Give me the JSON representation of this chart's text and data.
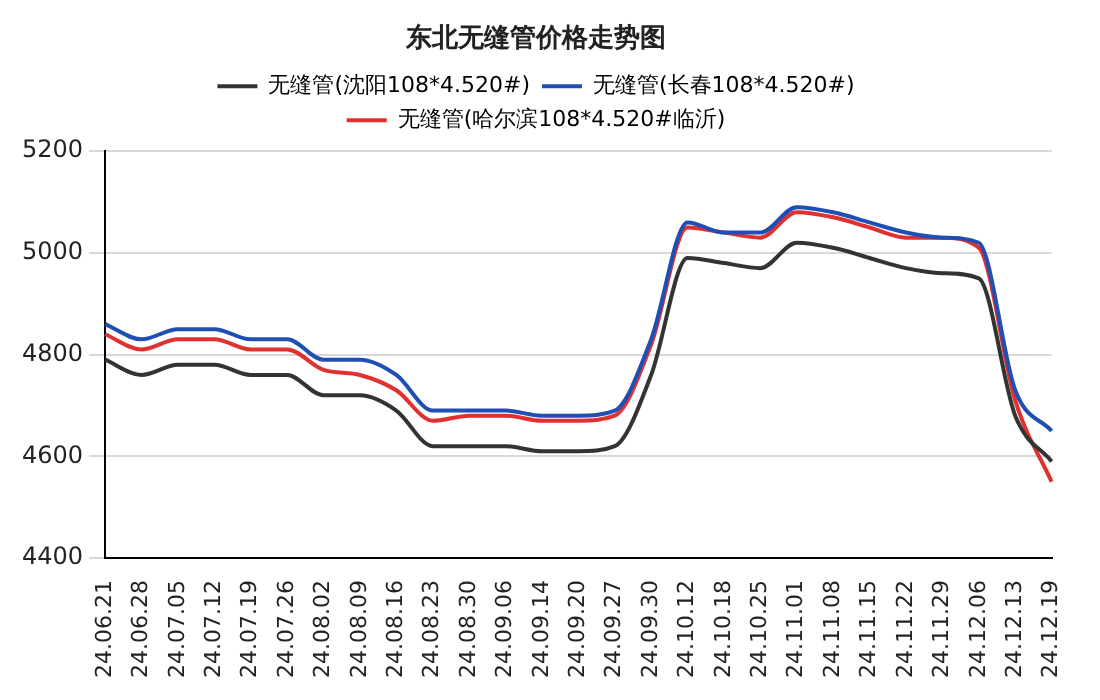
{
  "chart_data": {
    "type": "line",
    "title": "东北无缝管价格走势图",
    "categories": [
      "24.06.21",
      "24.06.28",
      "24.07.05",
      "24.07.12",
      "24.07.19",
      "24.07.26",
      "24.08.02",
      "24.08.09",
      "24.08.16",
      "24.08.23",
      "24.08.30",
      "24.09.06",
      "24.09.14",
      "24.09.20",
      "24.09.27",
      "24.09.30",
      "24.10.12",
      "24.10.18",
      "24.10.25",
      "24.11.01",
      "24.11.08",
      "24.11.15",
      "24.11.22",
      "24.11.29",
      "24.12.06",
      "24.12.13",
      "24.12.19"
    ],
    "series": [
      {
        "name": "无缝管(沈阳108*4.520#)",
        "color": "#333333",
        "values": [
          4790,
          4760,
          4780,
          4780,
          4760,
          4760,
          4720,
          4720,
          4690,
          4620,
          4620,
          4620,
          4610,
          4610,
          4620,
          4760,
          4990,
          4980,
          4970,
          5020,
          5010,
          4990,
          4970,
          4960,
          4950,
          4680,
          4590
        ]
      },
      {
        "name": "无缝管(长春108*4.520#)",
        "color": "#1f4fb4",
        "values": [
          4860,
          4830,
          4850,
          4850,
          4830,
          4830,
          4790,
          4790,
          4760,
          4690,
          4690,
          4690,
          4680,
          4680,
          4690,
          4830,
          5060,
          5040,
          5040,
          5090,
          5080,
          5060,
          5040,
          5030,
          5020,
          4730,
          4650
        ]
      },
      {
        "name": "无缝管(哈尔滨108*4.520#临沂)",
        "color": "#e03030",
        "values": [
          4840,
          4810,
          4830,
          4830,
          4810,
          4810,
          4770,
          4760,
          4730,
          4670,
          4680,
          4680,
          4670,
          4670,
          4680,
          4820,
          5050,
          5040,
          5030,
          5080,
          5070,
          5050,
          5030,
          5030,
          5010,
          4710,
          4550
        ]
      }
    ],
    "ylim": [
      4400,
      5200
    ],
    "yticks": [
      4400,
      4600,
      4800,
      5000,
      5200
    ],
    "grid": "y",
    "legend": "top",
    "marker": "none",
    "line_style": "solid"
  }
}
